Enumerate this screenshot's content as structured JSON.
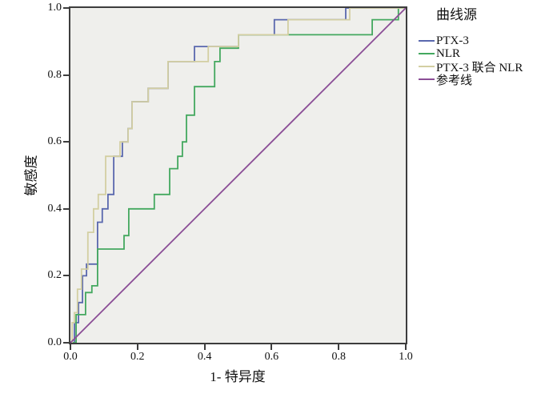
{
  "chart_data": {
    "type": "line",
    "subtype": "roc-curve",
    "title": "",
    "xlabel": "1- 特异度",
    "ylabel": "敏感度",
    "xlim": [
      0.0,
      1.0
    ],
    "ylim": [
      0.0,
      1.0
    ],
    "xticks": [
      0.0,
      0.2,
      0.4,
      0.6,
      0.8,
      1.0
    ],
    "yticks": [
      0.0,
      0.2,
      0.4,
      0.6,
      0.8,
      1.0
    ],
    "grid": false,
    "plot_bg_color": "#efefec",
    "frame_color": "#3d3d3d",
    "legend": {
      "title": "曲线源",
      "position": "right"
    },
    "series": [
      {
        "id": "ptx3",
        "name": "PTX-3",
        "color": "#5a68ae",
        "style": "step",
        "points": [
          [
            0.012,
            0.06
          ],
          [
            0.024,
            0.12
          ],
          [
            0.036,
            0.2
          ],
          [
            0.048,
            0.235
          ],
          [
            0.081,
            0.36
          ],
          [
            0.095,
            0.4
          ],
          [
            0.112,
            0.443
          ],
          [
            0.129,
            0.557
          ],
          [
            0.155,
            0.6
          ],
          [
            0.172,
            0.64
          ],
          [
            0.184,
            0.72
          ],
          [
            0.232,
            0.76
          ],
          [
            0.291,
            0.84
          ],
          [
            0.37,
            0.885
          ],
          [
            0.501,
            0.92
          ],
          [
            0.608,
            0.965
          ],
          [
            0.821,
            1.0
          ]
        ]
      },
      {
        "id": "nlr",
        "name": "NLR",
        "color": "#44a85f",
        "style": "step",
        "points": [
          [
            0.017,
            0.084
          ],
          [
            0.045,
            0.15
          ],
          [
            0.064,
            0.17
          ],
          [
            0.081,
            0.28
          ],
          [
            0.16,
            0.32
          ],
          [
            0.174,
            0.4
          ],
          [
            0.25,
            0.443
          ],
          [
            0.296,
            0.52
          ],
          [
            0.32,
            0.557
          ],
          [
            0.334,
            0.6
          ],
          [
            0.346,
            0.68
          ],
          [
            0.37,
            0.765
          ],
          [
            0.43,
            0.84
          ],
          [
            0.446,
            0.88
          ],
          [
            0.501,
            0.92
          ],
          [
            0.9,
            0.965
          ],
          [
            0.978,
            1.0
          ]
        ]
      },
      {
        "id": "ptx3-nlr",
        "name": "PTX-3 联合 NLR",
        "color": "#d3cfa2",
        "style": "step",
        "points": [
          [
            0.005,
            0.06
          ],
          [
            0.012,
            0.09
          ],
          [
            0.021,
            0.16
          ],
          [
            0.033,
            0.22
          ],
          [
            0.052,
            0.33
          ],
          [
            0.069,
            0.4
          ],
          [
            0.083,
            0.443
          ],
          [
            0.105,
            0.557
          ],
          [
            0.148,
            0.6
          ],
          [
            0.172,
            0.64
          ],
          [
            0.184,
            0.72
          ],
          [
            0.232,
            0.76
          ],
          [
            0.291,
            0.84
          ],
          [
            0.411,
            0.885
          ],
          [
            0.501,
            0.92
          ],
          [
            0.649,
            0.965
          ],
          [
            0.833,
            1.0
          ]
        ]
      },
      {
        "id": "reference",
        "name": "参考线",
        "color": "#8a4d96",
        "style": "line",
        "points": [
          [
            0.0,
            0.0
          ],
          [
            1.0,
            1.0
          ]
        ]
      }
    ]
  }
}
